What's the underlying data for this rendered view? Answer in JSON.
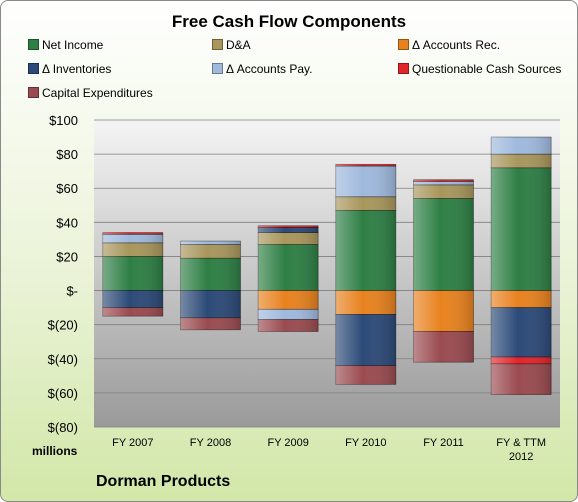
{
  "chart_data": {
    "type": "bar",
    "stacked": true,
    "title": "Free Cash Flow Components",
    "categories": [
      "FY 2007",
      "FY 2008",
      "FY 2009",
      "FY 2010",
      "FY 2011",
      "FY & TTM 2012"
    ],
    "series": [
      {
        "name": "Net Income",
        "color": "#2e7f45",
        "values": [
          20,
          19,
          27,
          47,
          54,
          72
        ]
      },
      {
        "name": "D&A",
        "color": "#a8965c",
        "values": [
          8,
          8,
          7,
          8,
          8,
          8
        ]
      },
      {
        "name": "Δ Accounts Rec.",
        "color": "#e8821f",
        "values": [
          0,
          0,
          -11,
          -14,
          -24,
          -10
        ]
      },
      {
        "name": "Δ Inventories",
        "color": "#2c4a78",
        "values": [
          -10,
          -16,
          3,
          -30,
          0,
          -29
        ]
      },
      {
        "name": "Δ Accounts Pay.",
        "color": "#9fb9dd",
        "values": [
          5,
          2,
          -6,
          18,
          2,
          10
        ]
      },
      {
        "name": "Questionable Cash Sources",
        "color": "#e2252b",
        "values": [
          1,
          0,
          1,
          1,
          1,
          -4
        ]
      },
      {
        "name": "Capital Expenditures",
        "color": "#9a4b50",
        "values": [
          -5,
          -7,
          -7,
          -11,
          -18,
          -18
        ]
      }
    ],
    "ylim": [
      -80,
      100
    ],
    "yticks": [
      100,
      80,
      60,
      40,
      20,
      0,
      -20,
      -40,
      -60,
      -80
    ],
    "ytick_labels": [
      "$100",
      "$80",
      "$60",
      "$40",
      "$20",
      "$-",
      "$(20)",
      "$(40)",
      "$(60)",
      "$(80)"
    ],
    "ylabel": "millions",
    "legend_position": "top",
    "grid": true
  },
  "footer": {
    "company": "Dorman Products"
  }
}
